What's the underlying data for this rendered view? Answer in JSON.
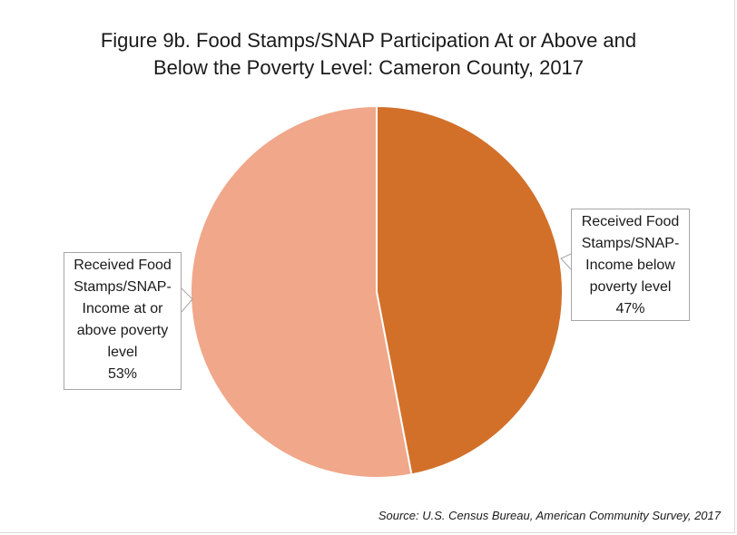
{
  "title_lines": [
    "Figure 9b. Food Stamps/SNAP Participation At or Above and",
    "Below the Poverty Level: Cameron County, 2017"
  ],
  "source": "Source: U.S. Census Bureau, American Community Survey, 2017",
  "chart_data": {
    "type": "pie",
    "slices": [
      {
        "label_lines": [
          "Received Food",
          "Stamps/SNAP-",
          "Income below",
          "poverty level"
        ],
        "value": 47,
        "value_label": "47%",
        "color": "#d2702a"
      },
      {
        "label_lines": [
          "Received Food",
          "Stamps/SNAP-",
          "Income at or",
          "above poverty",
          "level"
        ],
        "value": 53,
        "value_label": "53%",
        "color": "#f0a78a"
      }
    ]
  }
}
